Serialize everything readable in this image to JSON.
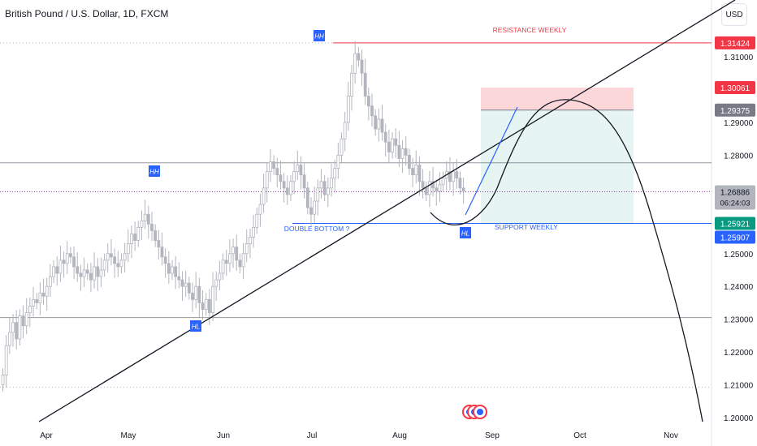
{
  "header": {
    "title": "British Pound / U.S. Dollar, 1D, FXCM",
    "currency_button": "USD"
  },
  "chart_data": {
    "type": "candlestick",
    "title": "British Pound / U.S. Dollar, 1D, FXCM",
    "x_ticks": [
      "Apr",
      "May",
      "Jun",
      "Jul",
      "Aug",
      "Sep",
      "Oct",
      "Nov"
    ],
    "y_ticks": [
      "1.20000",
      "1.21000",
      "1.22000",
      "1.23000",
      "1.24000",
      "1.25000",
      "1.28000",
      "1.29000",
      "1.31000"
    ],
    "ylim": [
      1.2,
      1.318
    ],
    "price_labels": [
      {
        "value": "1.31424",
        "style": "resistance",
        "color": "#f23645"
      },
      {
        "value": "1.30061",
        "style": "stop",
        "color": "#f23645"
      },
      {
        "value": "1.29375",
        "style": "entry",
        "color": "#787b86"
      },
      {
        "value": "1.26886",
        "style": "last",
        "color": "#b2b5be",
        "countdown": "06:24:03"
      },
      {
        "value": "1.25921",
        "style": "support",
        "color": "#089981"
      },
      {
        "value": "1.25907",
        "style": "alt",
        "color": "#2962ff"
      }
    ],
    "annotations": [
      {
        "text": "HH",
        "type": "badge"
      },
      {
        "text": "HH",
        "type": "badge"
      },
      {
        "text": "HL",
        "type": "badge"
      },
      {
        "text": "HL",
        "type": "badge"
      },
      {
        "text": "RESISTANCE WEEKLY",
        "type": "label",
        "color": "#f23645"
      },
      {
        "text": "SUPPORT WEEKLY",
        "type": "label",
        "color": "#2962ff"
      },
      {
        "text": "DOUBLE BOTTOM ?",
        "type": "label",
        "color": "#2962ff"
      }
    ],
    "horizontal_levels": [
      1.31424,
      1.2777,
      1.26886,
      1.25921,
      1.2305,
      1.2093
    ],
    "position": {
      "stop": 1.30061,
      "entry": 1.29375,
      "target": 1.25921
    },
    "candles_close": [
      1.213,
      1.222,
      1.226,
      1.229,
      1.224,
      1.231,
      1.228,
      1.232,
      1.234,
      1.236,
      1.235,
      1.238,
      1.237,
      1.24,
      1.243,
      1.246,
      1.244,
      1.248,
      1.247,
      1.25,
      1.249,
      1.246,
      1.244,
      1.243,
      1.245,
      1.244,
      1.242,
      1.246,
      1.243,
      1.245,
      1.248,
      1.25,
      1.249,
      1.247,
      1.246,
      1.248,
      1.25,
      1.253,
      1.256,
      1.254,
      1.258,
      1.26,
      1.262,
      1.259,
      1.257,
      1.254,
      1.252,
      1.249,
      1.247,
      1.244,
      1.246,
      1.243,
      1.242,
      1.24,
      1.241,
      1.238,
      1.236,
      1.24,
      1.235,
      1.233,
      1.236,
      1.232,
      1.24,
      1.242,
      1.244,
      1.248,
      1.247,
      1.25,
      1.252,
      1.248,
      1.246,
      1.25,
      1.253,
      1.255,
      1.258,
      1.262,
      1.265,
      1.27,
      1.275,
      1.278,
      1.276,
      1.274,
      1.272,
      1.27,
      1.268,
      1.272,
      1.275,
      1.277,
      1.274,
      1.27,
      1.264,
      1.262,
      1.266,
      1.27,
      1.272,
      1.268,
      1.27,
      1.273,
      1.276,
      1.28,
      1.285,
      1.29,
      1.298,
      1.305,
      1.311,
      1.309,
      1.305,
      1.298,
      1.295,
      1.292,
      1.288,
      1.291,
      1.287,
      1.284,
      1.281,
      1.285,
      1.283,
      1.279,
      1.282,
      1.28,
      1.276,
      1.274,
      1.277,
      1.272,
      1.27,
      1.268,
      1.272,
      1.27,
      1.269,
      1.271,
      1.273,
      1.275,
      1.272,
      1.275,
      1.273,
      1.27,
      1.269
    ]
  }
}
